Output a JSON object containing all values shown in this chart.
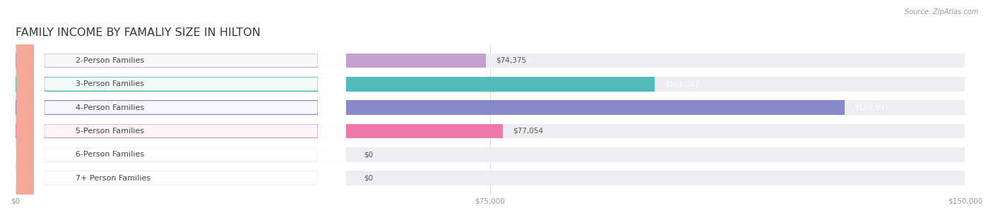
{
  "title": "FAMILY INCOME BY FAMALIY SIZE IN HILTON",
  "source": "Source: ZipAtlas.com",
  "categories": [
    "2-Person Families",
    "3-Person Families",
    "4-Person Families",
    "5-Person Families",
    "6-Person Families",
    "7+ Person Families"
  ],
  "values": [
    74375,
    101047,
    130991,
    77054,
    0,
    0
  ],
  "bar_colors": [
    "#c4a0d0",
    "#52bcbc",
    "#8888cc",
    "#f077aa",
    "#f5c89a",
    "#f5a898"
  ],
  "bg_track_color": "#eeeef2",
  "value_label_colors": [
    "#555555",
    "#ffffff",
    "#ffffff",
    "#555555",
    "#555555",
    "#555555"
  ],
  "xlim": [
    0,
    150000
  ],
  "xticks": [
    0,
    75000,
    150000
  ],
  "xtick_labels": [
    "$0",
    "$75,000",
    "$150,000"
  ],
  "bar_height": 0.62,
  "figsize": [
    14.06,
    3.05
  ],
  "dpi": 100,
  "title_fontsize": 11.5,
  "label_fontsize": 8.0,
  "value_fontsize": 7.5,
  "source_fontsize": 7.0,
  "title_color": "#2d3a3a",
  "tick_color": "#999999",
  "background_color": "#ffffff",
  "grid_color": "#dddddd"
}
